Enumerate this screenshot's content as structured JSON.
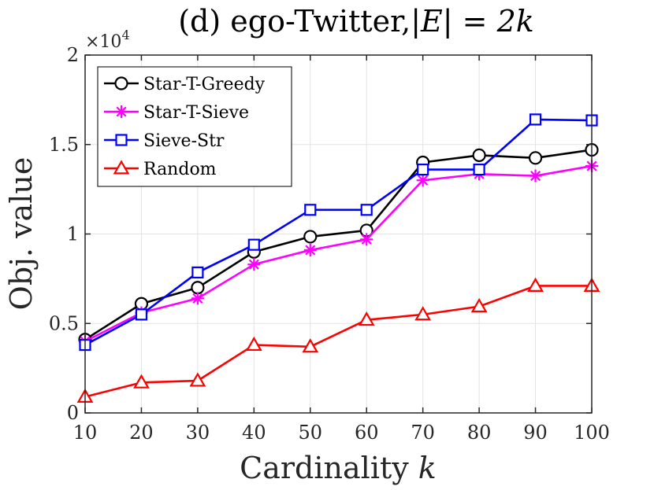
{
  "chart_data": {
    "type": "line",
    "title_main": "(d) ego-Twitter,",
    "title_math_lhs": "|E|",
    "title_math_eq": " = ",
    "title_math_rhs": "2k",
    "xlabel_text": "Cardinality ",
    "xlabel_var": "k",
    "ylabel": "Obj. value",
    "y_scale_base": "×10",
    "y_scale_exp": "4",
    "x": [
      10,
      20,
      30,
      40,
      50,
      60,
      70,
      80,
      90,
      100
    ],
    "xlim": [
      10,
      100
    ],
    "ylim": [
      0,
      2
    ],
    "xticks": [
      "10",
      "20",
      "30",
      "40",
      "50",
      "60",
      "70",
      "80",
      "90",
      "100"
    ],
    "yticks": [
      {
        "value": 0,
        "label": "0"
      },
      {
        "value": 0.5,
        "label": "0.5"
      },
      {
        "value": 1,
        "label": "1"
      },
      {
        "value": 1.5,
        "label": "1.5"
      },
      {
        "value": 2,
        "label": "2"
      }
    ],
    "grid": true,
    "legend_position": "top-left",
    "series": [
      {
        "name": "Star-T-Greedy",
        "color": "#000000",
        "marker": "circle",
        "values": [
          0.41,
          0.61,
          0.7,
          0.9,
          0.985,
          1.02,
          1.4,
          1.44,
          1.425,
          1.47
        ]
      },
      {
        "name": "Star-T-Sieve",
        "color": "#ff00ff",
        "marker": "asterisk",
        "values": [
          0.4,
          0.56,
          0.64,
          0.83,
          0.91,
          0.97,
          1.3,
          1.335,
          1.325,
          1.38
        ]
      },
      {
        "name": "Sieve-Str",
        "color": "#0000ff",
        "marker": "square",
        "values": [
          0.38,
          0.55,
          0.785,
          0.94,
          1.135,
          1.135,
          1.36,
          1.36,
          1.64,
          1.635
        ]
      },
      {
        "name": "Random",
        "color": "#ff0000",
        "marker": "triangle",
        "values": [
          0.09,
          0.17,
          0.18,
          0.38,
          0.37,
          0.52,
          0.55,
          0.595,
          0.71,
          0.71
        ]
      }
    ]
  }
}
